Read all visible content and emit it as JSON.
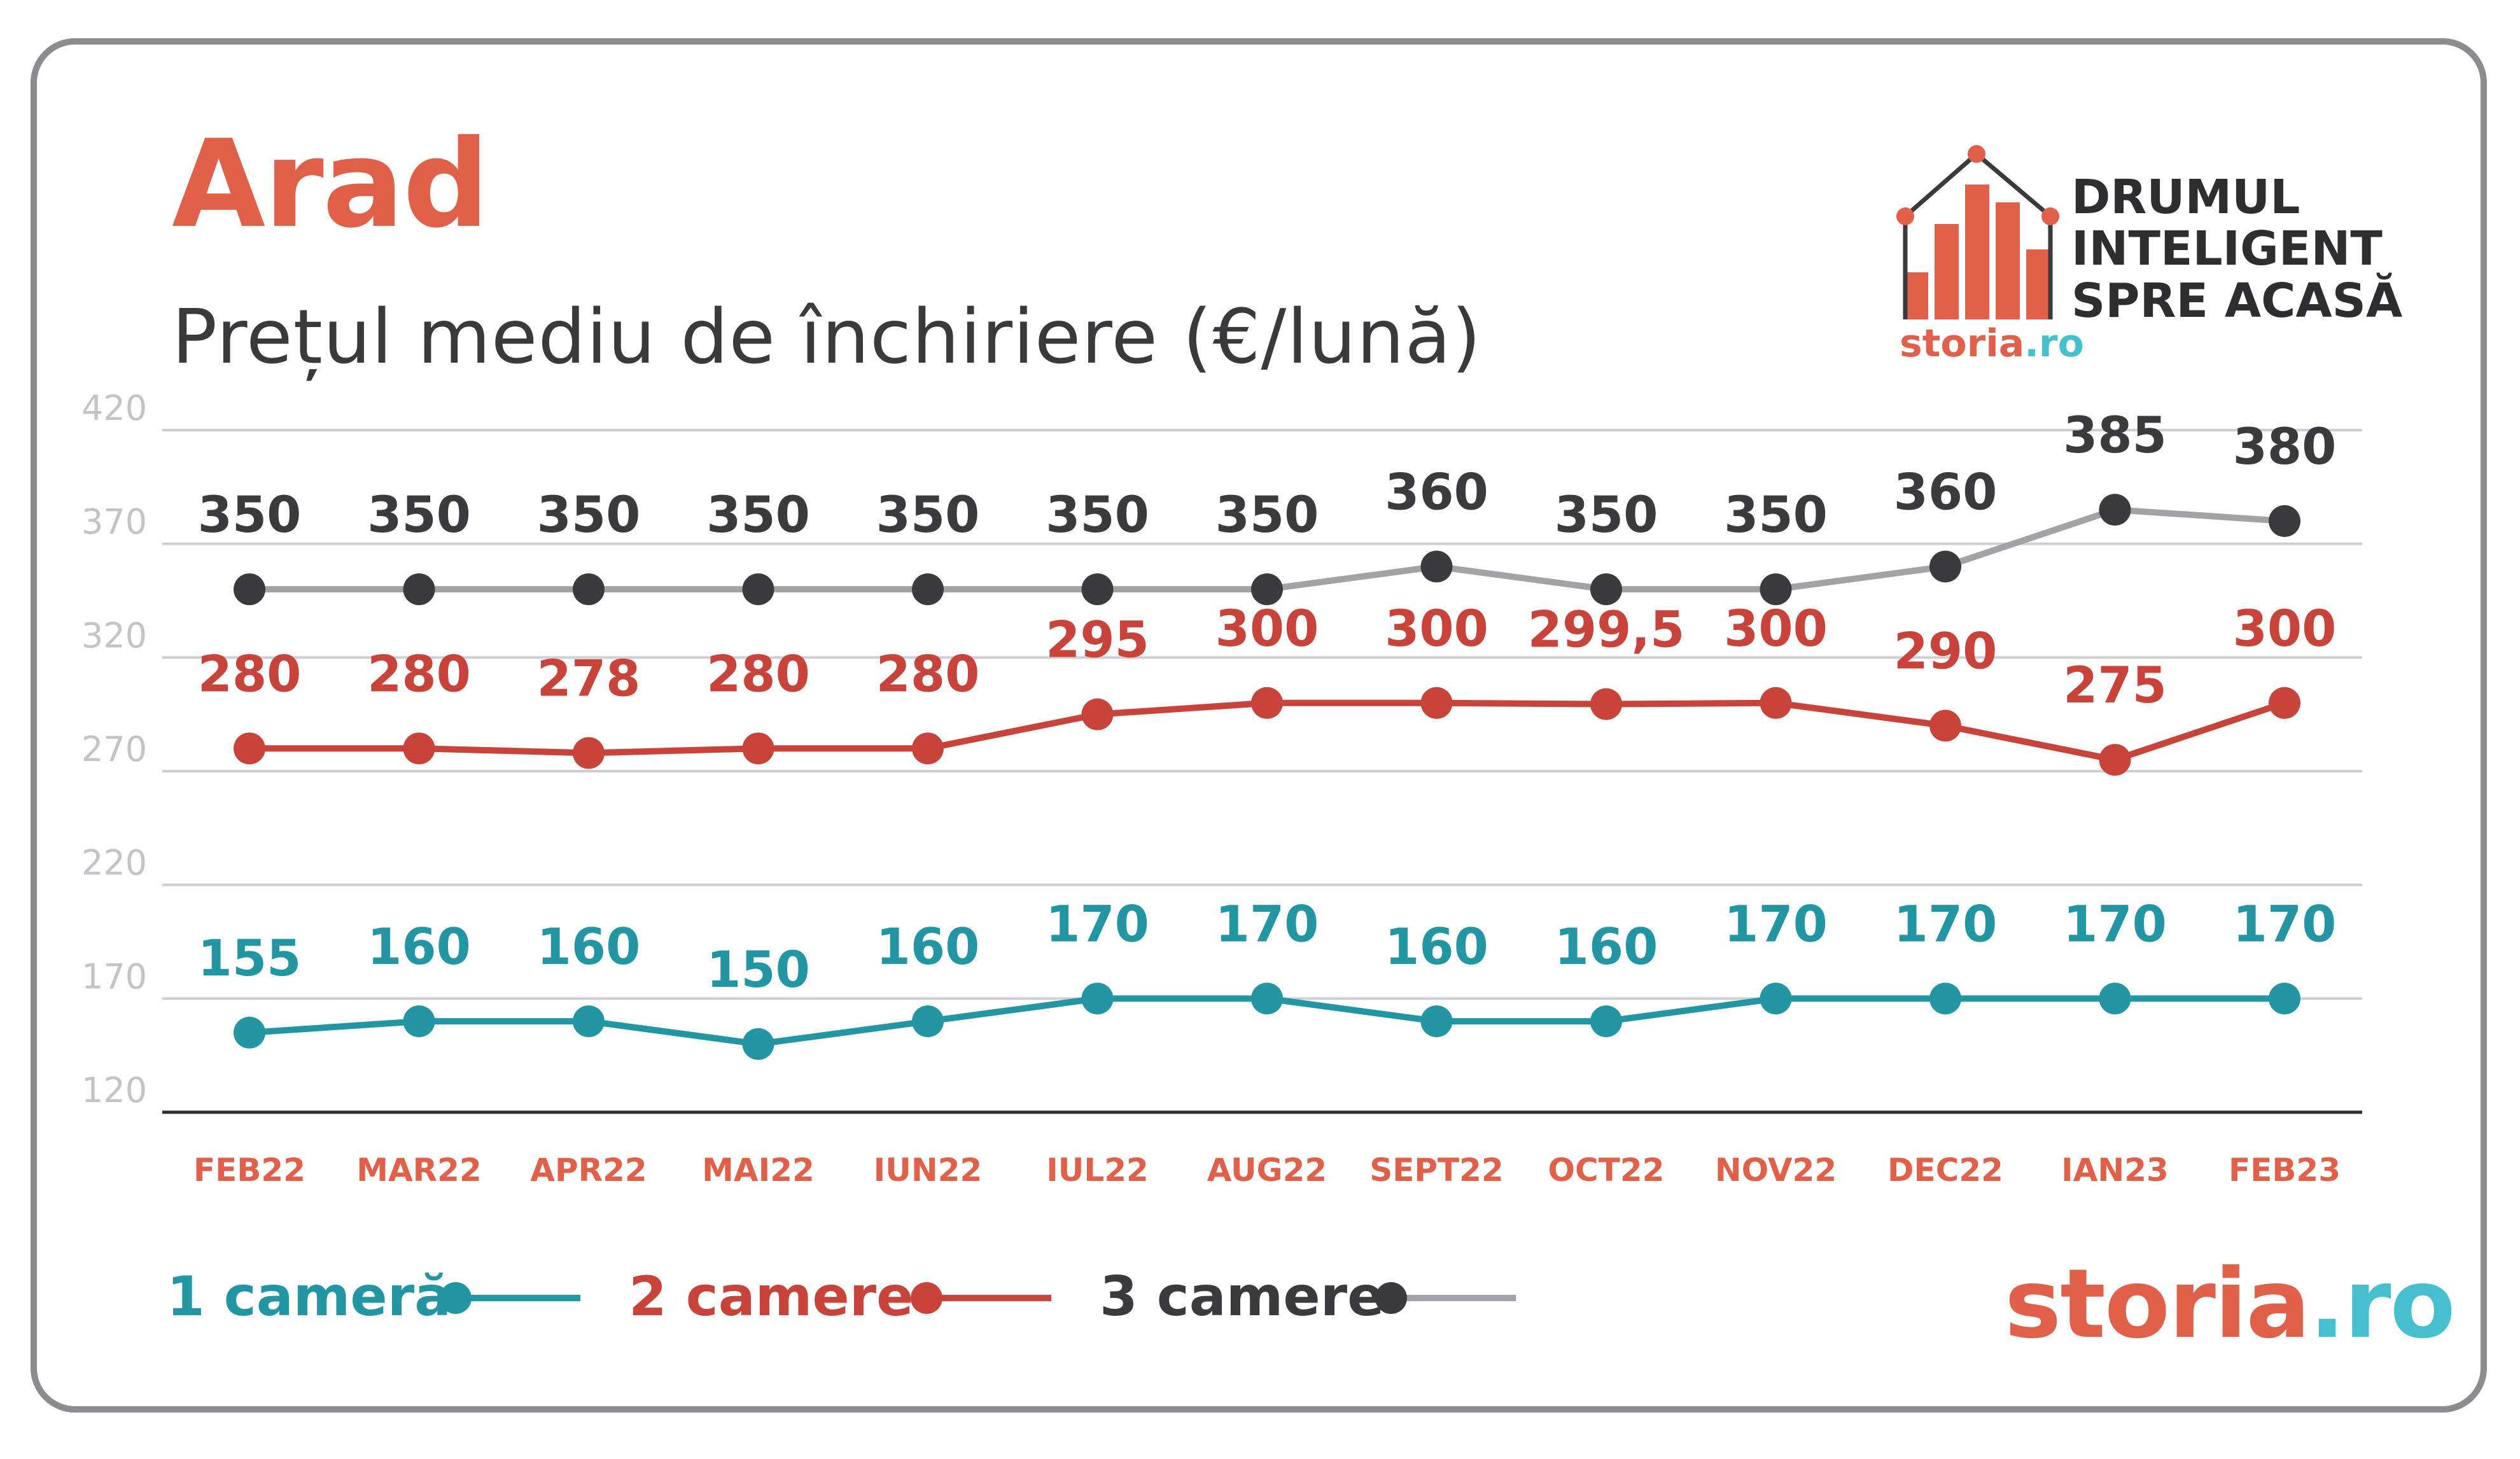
{
  "header": {
    "title": "Arad",
    "subtitle": "Prețul mediu de închiriere (€/lună)"
  },
  "logo": {
    "lines": [
      "DRUMUL",
      "INTELIGENT",
      "SPRE ACASĂ"
    ],
    "brand_a": "storia",
    "brand_b": ".ro"
  },
  "footer_brand": {
    "brand_a": "storia",
    "brand_b": ".ro"
  },
  "colors": {
    "series_1": "#2396a4",
    "series_2": "#c8443a",
    "series_3_line": "#a3a3a7",
    "series_3_marker": "#3b3b3d",
    "accent": "#e0604a",
    "teal_brand": "#46c0cf",
    "grid": "#cfcfd3"
  },
  "chart_data": {
    "type": "line",
    "categories": [
      "FEB22",
      "MAR22",
      "APR22",
      "MAI22",
      "IUN22",
      "IUL22",
      "AUG22",
      "SEPT22",
      "OCT22",
      "NOV22",
      "DEC22",
      "IAN23",
      "FEB23"
    ],
    "ylim": [
      120,
      420
    ],
    "yticks": [
      "120",
      "170",
      "220",
      "270",
      "320",
      "370",
      "420"
    ],
    "grid": true,
    "legend_position": "bottom-left",
    "series": [
      {
        "name": "1 cameră",
        "values": [
          155,
          160,
          160,
          150,
          160,
          170,
          170,
          160,
          160,
          170,
          170,
          170,
          170
        ],
        "labels": [
          "155",
          "160",
          "160",
          "150",
          "160",
          "170",
          "170",
          "160",
          "160",
          "170",
          "170",
          "170",
          "170"
        ]
      },
      {
        "name": "2 camere",
        "values": [
          280,
          280,
          278,
          280,
          280,
          295,
          300,
          300,
          299.5,
          300,
          290,
          275,
          300
        ],
        "labels": [
          "280",
          "280",
          "278",
          "280",
          "280",
          "295",
          "300",
          "300",
          "299,5",
          "300",
          "290",
          "275",
          "300"
        ]
      },
      {
        "name": "3 camere",
        "values": [
          350,
          350,
          350,
          350,
          350,
          350,
          350,
          360,
          350,
          350,
          360,
          385,
          380
        ],
        "labels": [
          "350",
          "350",
          "350",
          "350",
          "350",
          "350",
          "350",
          "360",
          "350",
          "350",
          "360",
          "385",
          "380"
        ]
      }
    ]
  }
}
